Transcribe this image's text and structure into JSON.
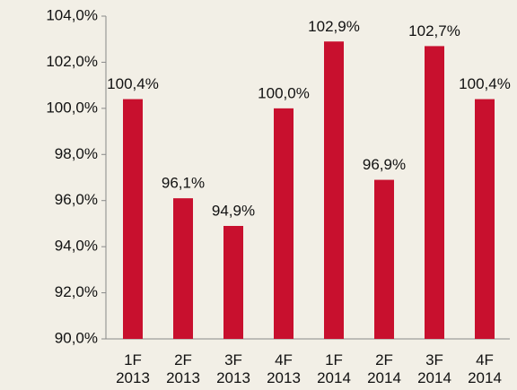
{
  "chart_data": {
    "type": "bar",
    "categories": [
      "1F 2013",
      "2F 2013",
      "3F 2013",
      "4F 2013",
      "1F 2014",
      "2F 2014",
      "3F 2014",
      "4F 2014"
    ],
    "values": [
      100.4,
      96.1,
      94.9,
      100.0,
      102.9,
      96.9,
      102.7,
      100.4
    ],
    "value_labels": [
      "100,4%",
      "96,1%",
      "94,9%",
      "100,0%",
      "102,9%",
      "96,9%",
      "102,7%",
      "100,4%"
    ],
    "color": "#c8102e",
    "ylim": [
      90,
      104
    ],
    "yticks": [
      {
        "value": 90,
        "label": "90,0%"
      },
      {
        "value": 92,
        "label": "92,0%"
      },
      {
        "value": 94,
        "label": "94,0%"
      },
      {
        "value": 96,
        "label": "96,0%"
      },
      {
        "value": 98,
        "label": "98,0%"
      },
      {
        "value": 100,
        "label": "100,0%"
      },
      {
        "value": 102,
        "label": "102,0%"
      },
      {
        "value": 104,
        "label": "104,0%"
      }
    ],
    "grid": false
  }
}
